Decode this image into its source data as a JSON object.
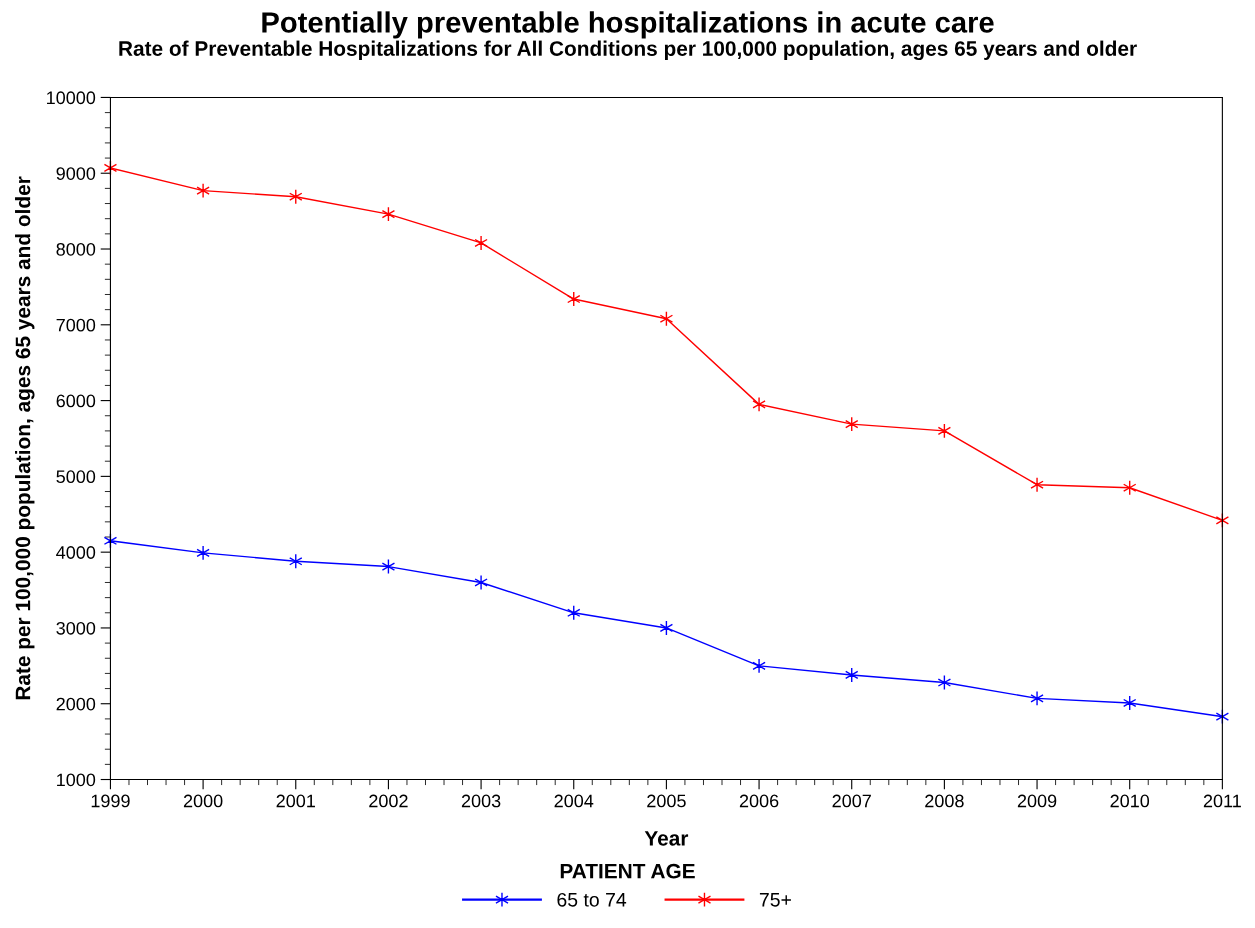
{
  "chart_data": {
    "type": "line",
    "title": "Potentially preventable hospitalizations in acute care",
    "subtitle": "Rate of Preventable Hospitalizations for All Conditions per 100,000 population, ages 65 years and older",
    "xlabel": "Year",
    "ylabel": "Rate per 100,000 population, ages 65 years and older",
    "legend_title": "PATIENT AGE",
    "x": [
      1999,
      2000,
      2001,
      2002,
      2003,
      2004,
      2005,
      2006,
      2007,
      2008,
      2009,
      2010,
      2011
    ],
    "series": [
      {
        "name": "65 to 74",
        "color": "#0000ff",
        "values": [
          4150,
          3990,
          3880,
          3810,
          3600,
          3200,
          3000,
          2500,
          2380,
          2280,
          2070,
          2010,
          1830
        ]
      },
      {
        "name": "75+",
        "color": "#ff0000",
        "values": [
          9070,
          8770,
          8690,
          8460,
          8080,
          7340,
          7080,
          5950,
          5690,
          5600,
          4890,
          4850,
          4420
        ]
      }
    ],
    "xlim": [
      1999,
      2011
    ],
    "xticks": [
      1999,
      2000,
      2001,
      2002,
      2003,
      2004,
      2005,
      2006,
      2007,
      2008,
      2009,
      2010,
      2011
    ],
    "ylim": [
      1000,
      10000
    ],
    "yticks": [
      1000,
      2000,
      3000,
      4000,
      5000,
      6000,
      7000,
      8000,
      9000,
      10000
    ],
    "grid": false,
    "legend": "bottom",
    "marker": "cross",
    "line_style": "solid"
  }
}
